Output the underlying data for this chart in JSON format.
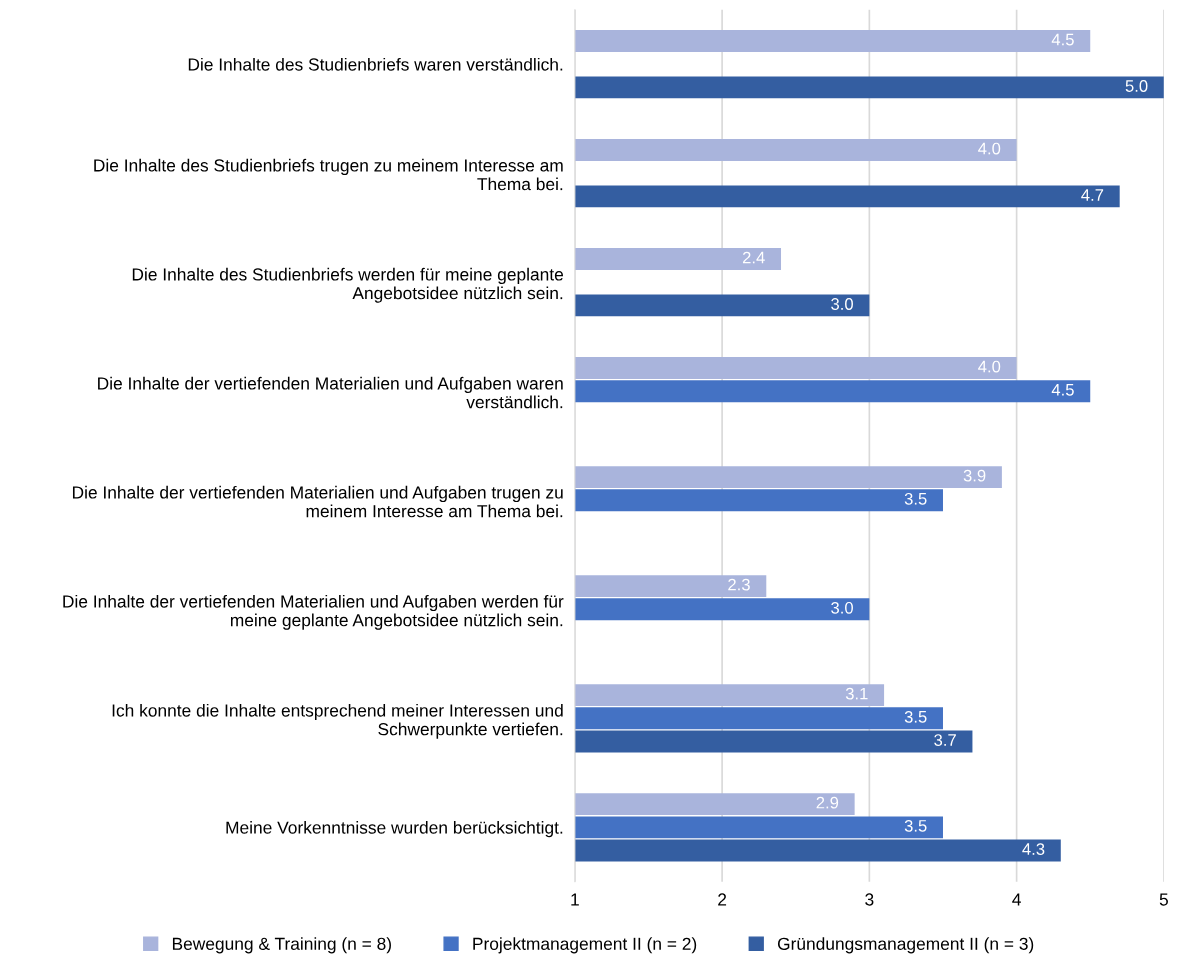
{
  "chart_data": {
    "type": "bar",
    "orientation": "horizontal",
    "categories": [
      "Die Inhalte des Studienbriefs waren verständlich.",
      "Die Inhalte des Studienbriefs trugen zu meinem Interesse am\nThema bei.",
      "Die Inhalte des Studienbriefs werden für meine geplante\nAngebotsidee nützlich sein.",
      "Die Inhalte der vertiefenden Materialien und Aufgaben waren\nverständlich.",
      "Die Inhalte der vertiefenden Materialien und Aufgaben trugen zu\nmeinem Interesse am Thema bei.",
      "Die Inhalte der vertiefenden Materialien und Aufgaben werden für\nmeine geplante Angebotsidee nützlich sein.",
      "Ich konnte die Inhalte entsprechend meiner Interessen und\nSchwerpunkte vertiefen.",
      "Meine Vorkenntnisse wurden berücksichtigt."
    ],
    "series": [
      {
        "name": "Bewegung & Training (n = 8)",
        "color": "#a9b4dc",
        "values": [
          4.5,
          4.0,
          2.4,
          4.0,
          3.9,
          2.3,
          3.1,
          2.9
        ],
        "value_labels": [
          "4.5",
          "4.0",
          "2.4",
          "4.0",
          "3.9",
          "2.3",
          "3.1",
          "2.9"
        ]
      },
      {
        "name": "Projektmanagement II (n = 2)",
        "color": "#4472c4",
        "values": [
          null,
          null,
          null,
          4.5,
          3.5,
          3.0,
          3.5,
          3.5
        ],
        "value_labels": [
          null,
          null,
          null,
          "4.5",
          "3.5",
          "3.0",
          "3.5",
          "3.5"
        ]
      },
      {
        "name": "Gründungsmanagement II (n = 3)",
        "color": "#345ea1",
        "values": [
          5.0,
          4.7,
          3.0,
          null,
          null,
          null,
          3.7,
          4.3
        ],
        "value_labels": [
          "5.0",
          "4.7",
          "3.0",
          null,
          null,
          null,
          "3.7",
          "4.3"
        ]
      }
    ],
    "xlim": [
      1,
      5
    ],
    "xticks": [
      1,
      2,
      3,
      4,
      5
    ],
    "grid": "x",
    "legend": "bottom"
  }
}
